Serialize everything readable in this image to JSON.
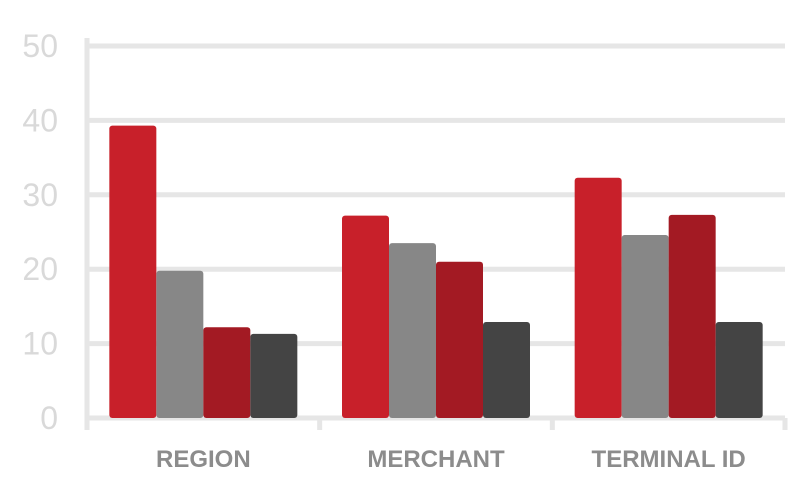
{
  "chart_data": {
    "type": "bar",
    "categories": [
      "REGION",
      "MERCHANT",
      "TERMINAL ID"
    ],
    "series": [
      {
        "values": [
          39.3,
          27.2,
          32.3
        ],
        "color": "#c8202a"
      },
      {
        "values": [
          19.8,
          23.5,
          24.6
        ],
        "color": "#878787"
      },
      {
        "values": [
          12.2,
          21.0,
          27.3
        ],
        "color": "#a31a23"
      },
      {
        "values": [
          11.3,
          12.9,
          12.9
        ],
        "color": "#444444"
      }
    ],
    "yticks": [
      "0",
      "10",
      "20",
      "30",
      "40",
      "50"
    ],
    "ylim": [
      0,
      50
    ],
    "grid": true,
    "gridColor": "#e6e6e6",
    "tickColor": "#d9d9d9",
    "categoryLabelColor": "#8c8c8c"
  }
}
